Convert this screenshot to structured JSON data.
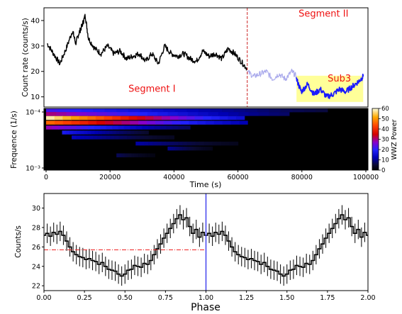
{
  "chart_data": [
    {
      "type": "line",
      "panel": "top",
      "ylabel": "Count rate (counts/s)",
      "yticks": [
        10,
        20,
        30,
        40
      ],
      "ylim": [
        6,
        45
      ],
      "xlim": [
        -1000,
        101000
      ],
      "grid": false,
      "divider_x": 63000,
      "annotations": [
        {
          "text": "Segment I",
          "x": 33000,
          "y": 12,
          "color": "#ee1111"
        },
        {
          "text": "Segment II",
          "x": 87000,
          "y": 41.5,
          "color": "#ee1111"
        },
        {
          "text": "Sub3",
          "x": 92000,
          "y": 16,
          "color": "#ee1111"
        }
      ],
      "highlight": {
        "x0": 78500,
        "x1": 99500,
        "y0": 8,
        "y1": 18.3,
        "color": "#ffff99"
      },
      "series": [
        {
          "style": "black",
          "x": [
            0,
            2000,
            4000,
            6000,
            8000,
            9000,
            10000,
            11000,
            12000,
            13000,
            15000,
            17000,
            19000,
            21000,
            23000,
            25000,
            27000,
            29000,
            31000,
            33000,
            35000,
            37000,
            39000,
            41000,
            43000,
            45000,
            47000,
            49000,
            51000,
            53000,
            55000,
            57000,
            59000,
            61000,
            63000
          ],
          "y": [
            31,
            27,
            23,
            29,
            36,
            31,
            35,
            38,
            42,
            33,
            29,
            27,
            30,
            27,
            28,
            25,
            26,
            27,
            24,
            27,
            23,
            30,
            27,
            26,
            27,
            25,
            24,
            28,
            26,
            27,
            25,
            29,
            27,
            24,
            21
          ]
        },
        {
          "style": "faint-blue",
          "x": [
            63000,
            65000,
            67000,
            69000,
            71000,
            73000,
            75000,
            77000,
            78500
          ],
          "y": [
            20,
            18,
            19,
            20,
            17,
            19,
            17,
            20,
            18
          ]
        },
        {
          "style": "blue",
          "x": [
            78500,
            80000,
            82000,
            84000,
            86000,
            88000,
            90000,
            92000,
            94000,
            96000,
            98000,
            99500
          ],
          "y": [
            17,
            12,
            15,
            11,
            13,
            10,
            11,
            13,
            12,
            14,
            16,
            18
          ]
        }
      ]
    },
    {
      "type": "heatmap",
      "panel": "middle",
      "ylabel": "Frequence (1/s)",
      "xlabel": "Time (s)",
      "xticks": [
        "0",
        "20000",
        "40000",
        "60000",
        "80000",
        "100000"
      ],
      "yticks": [
        "10⁻⁴",
        "10⁻³"
      ],
      "colorbar": {
        "label": "WWZ Power",
        "ticks": [
          0,
          10,
          20,
          30,
          40,
          50,
          60
        ]
      },
      "bands": [
        {
          "t0": 0,
          "t1": 88000,
          "f_frac": 0.03,
          "power": 22
        },
        {
          "t0": 0,
          "t1": 76000,
          "f_frac": 0.09,
          "power": 30
        },
        {
          "t0": 0,
          "t1": 62000,
          "f_frac": 0.155,
          "power": 58
        },
        {
          "t0": 0,
          "t1": 63000,
          "f_frac": 0.23,
          "power": 46
        },
        {
          "t0": 0,
          "t1": 45000,
          "f_frac": 0.31,
          "power": 28
        },
        {
          "t0": 5000,
          "t1": 32000,
          "f_frac": 0.39,
          "power": 18
        },
        {
          "t0": 8000,
          "t1": 40000,
          "f_frac": 0.47,
          "power": 13
        },
        {
          "t0": 28000,
          "t1": 60000,
          "f_frac": 0.57,
          "power": 11
        },
        {
          "t0": 38000,
          "t1": 52000,
          "f_frac": 0.65,
          "power": 10
        },
        {
          "t0": 22000,
          "t1": 34000,
          "f_frac": 0.76,
          "power": 7
        }
      ]
    },
    {
      "type": "line",
      "panel": "bottom",
      "xlabel": "Phase",
      "ylabel": "Counts/s",
      "xlim": [
        0,
        2
      ],
      "ylim": [
        21.5,
        31.5
      ],
      "xticks": [
        "0.00",
        "0.25",
        "0.50",
        "0.75",
        "1.00",
        "1.25",
        "1.50",
        "1.75",
        "2.00"
      ],
      "yticks": [
        22,
        24,
        26,
        28,
        30
      ],
      "grid": false,
      "error": 1.0,
      "mean_level": 25.7,
      "phase_marker": 1.0,
      "profile": [
        27.2,
        27.4,
        27.1,
        27.5,
        27.3,
        27.6,
        27.2,
        26.6,
        26.0,
        25.5,
        25.2,
        25.0,
        24.9,
        24.7,
        24.8,
        24.6,
        24.5,
        24.2,
        24.4,
        24.0,
        23.7,
        23.6,
        23.5,
        23.2,
        23.0,
        23.2,
        23.6,
        23.7,
        24.1,
        24.0,
        23.9,
        24.3,
        24.2,
        24.6,
        25.2,
        25.8,
        26.3,
        26.9,
        27.4,
        27.9,
        28.4,
        28.9,
        29.3,
        28.8,
        29.0,
        28.1,
        27.4,
        27.8,
        27.0,
        27.5,
        27.2
      ]
    }
  ]
}
